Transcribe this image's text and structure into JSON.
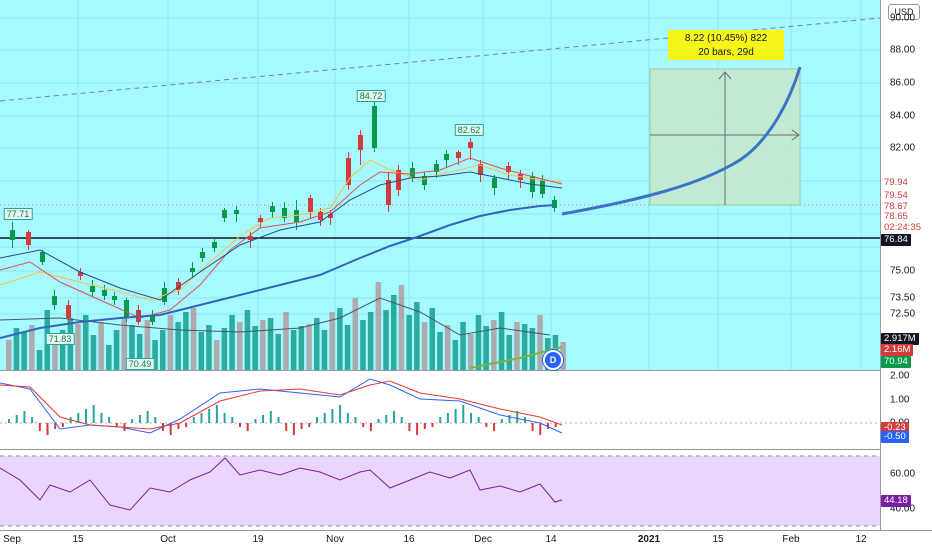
{
  "chart": {
    "currency": "USD",
    "colors": {
      "bg": "#a6f9fe",
      "up": "#089a4a",
      "down": "#d43a3a",
      "volume_up": "#26a69a",
      "volume_down": "#b08a8a",
      "ma_fast": "#f5c04a",
      "ma_mid": "#e05050",
      "ma_slow": "#3466b8",
      "rsi_bg": "#e3c9fa",
      "rsi_line": "#7b1fa2",
      "macd_line": "#2962ff",
      "signal_line": "#e53935",
      "target_zone": "#c8e6c9"
    },
    "annotations": {
      "high_1": "84.72",
      "high_2": "82.62",
      "low_left": "77.71",
      "vol_label_1": "71.83",
      "vol_label_2": "70.49",
      "position_line_1": "8.22 (10.45%) 822",
      "position_line_2": "20 bars, 29d",
      "interval_badge": "D"
    }
  },
  "price_axis": {
    "ticks": [
      "90.00",
      "88.00",
      "86.00",
      "84.00",
      "82.00",
      "75.00",
      "73.50",
      "72.50"
    ],
    "badges": [
      {
        "text": "79.94",
        "bg": "#ffffff",
        "fg": "#d43a3a"
      },
      {
        "text": "79.54",
        "bg": "#ffffff",
        "fg": "#d43a3a"
      },
      {
        "text": "78.67",
        "bg": "#ffffff",
        "fg": "#d43a3a"
      },
      {
        "text": "78.65",
        "bg": "#ffffff",
        "fg": "#d43a3a"
      },
      {
        "text": "02:24:35",
        "bg": "#ffffff",
        "fg": "#d43a3a"
      },
      {
        "text": "76.84",
        "bg": "#131722",
        "fg": "#ffffff"
      },
      {
        "text": "2.917M",
        "bg": "#131722",
        "fg": "#ffffff"
      },
      {
        "text": "2.16M",
        "bg": "#d43a3a",
        "fg": "#ffffff"
      },
      {
        "text": "70.94",
        "bg": "#089a4a",
        "fg": "#ffffff"
      }
    ]
  },
  "macd_axis": {
    "ticks": [
      "2.00",
      "1.00",
      "0.00"
    ],
    "badges": [
      {
        "text": "-0.23",
        "bg": "#d43a3a",
        "fg": "#ffffff"
      },
      {
        "text": "-0.50",
        "bg": "#2962ff",
        "fg": "#ffffff"
      }
    ]
  },
  "rsi_axis": {
    "ticks": [
      "60.00",
      "40.00"
    ],
    "badges": [
      {
        "text": "44.18",
        "bg": "#7b1fa2",
        "fg": "#ffffff"
      }
    ]
  },
  "time_axis": {
    "labels": [
      "Sep",
      "15",
      "Oct",
      "19",
      "Nov",
      "16",
      "Dec",
      "14",
      "2021",
      "15",
      "Feb",
      "12"
    ]
  }
}
